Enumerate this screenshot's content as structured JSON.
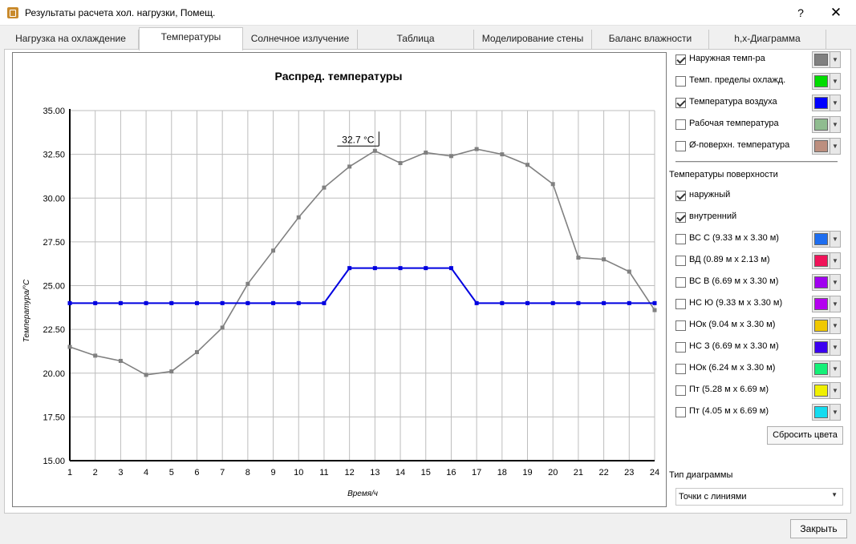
{
  "window": {
    "title": "Результаты расчета хол. нагрузки, Помещ.",
    "help": "?",
    "close": "✕"
  },
  "tabs": [
    {
      "label": "Нагрузка на охлаждение"
    },
    {
      "label": "Температуры"
    },
    {
      "label": "Солнечное излучение"
    },
    {
      "label": "Таблица"
    },
    {
      "label": "Моделирование стены"
    },
    {
      "label": "Баланс влажности"
    },
    {
      "label": "h,x-Диаграмма"
    }
  ],
  "chart_data": {
    "type": "line",
    "title": "Распред. температуры",
    "xlabel": "Время/ч",
    "ylabel": "Температура/°C",
    "x": [
      1,
      2,
      3,
      4,
      5,
      6,
      7,
      8,
      9,
      10,
      11,
      12,
      13,
      14,
      15,
      16,
      17,
      18,
      19,
      20,
      21,
      22,
      23,
      24
    ],
    "xlim": [
      1,
      24
    ],
    "ylim": [
      15,
      35
    ],
    "yticks": [
      "15.00",
      "17.50",
      "20.00",
      "22.50",
      "25.00",
      "27.50",
      "30.00",
      "32.50",
      "35.00"
    ],
    "grid": true,
    "annotation": {
      "text": "32.7 °C",
      "x": 13,
      "y": 32.7
    },
    "series": [
      {
        "name": "Наружная темп-ра",
        "color": "#808080",
        "values": [
          21.5,
          21.0,
          20.7,
          19.9,
          20.1,
          21.2,
          22.6,
          25.1,
          27.0,
          28.9,
          30.6,
          31.8,
          32.7,
          32.0,
          32.6,
          32.4,
          32.8,
          32.5,
          31.9,
          30.8,
          26.6,
          26.5,
          25.8,
          23.6
        ]
      },
      {
        "name": "Температура воздуха",
        "color": "#0000e0",
        "values": [
          24,
          24,
          24,
          24,
          24,
          24,
          24,
          24,
          24,
          24,
          24,
          26,
          26,
          26,
          26,
          26,
          24,
          24,
          24,
          24,
          24,
          24,
          24,
          24
        ]
      }
    ]
  },
  "panel": {
    "series_options": [
      {
        "label": "Наружная темп-ра",
        "checked": true,
        "color": "#808080"
      },
      {
        "label": "Темп. пределы охлажд.",
        "checked": false,
        "color": "#00dd00"
      },
      {
        "label": "Температура воздуха",
        "checked": true,
        "color": "#0000ff"
      },
      {
        "label": "Рабочая температура",
        "checked": false,
        "color": "#8fbc8f"
      },
      {
        "label": "Ø-поверхн. температура",
        "checked": false,
        "color": "#bc8f7f"
      }
    ],
    "surface_title": "Температуры поверхности",
    "surface_sides": [
      {
        "label": "наружный",
        "checked": true
      },
      {
        "label": "внутренний",
        "checked": true
      }
    ],
    "surfaces": [
      {
        "label": "ВС С (9.33 м x 3.30 м)",
        "checked": false,
        "color": "#1e6ef0"
      },
      {
        "label": "ВД (0.89 м x 2.13 м)",
        "checked": false,
        "color": "#f0145a"
      },
      {
        "label": "ВС В (6.69 м x 3.30 м)",
        "checked": false,
        "color": "#a000f0"
      },
      {
        "label": "НС Ю (9.33 м x 3.30 м)",
        "checked": false,
        "color": "#b400f0"
      },
      {
        "label": "НОк (9.04 м x 3.30 м)",
        "checked": false,
        "color": "#f0c800"
      },
      {
        "label": "НС З (6.69 м x 3.30 м)",
        "checked": false,
        "color": "#3c00f0"
      },
      {
        "label": "НОк (6.24 м x 3.30 м)",
        "checked": false,
        "color": "#14f078"
      },
      {
        "label": "Пт (5.28 м x 6.69 м)",
        "checked": false,
        "color": "#f0f000"
      },
      {
        "label": "Пт (4.05 м x 6.69 м)",
        "checked": false,
        "color": "#14dcf0"
      }
    ],
    "reset_label": "Сбросить цвета",
    "diagram_type_label": "Тип диаграммы",
    "diagram_type_value": "Точки с линиями"
  },
  "footer": {
    "close_label": "Закрыть"
  }
}
